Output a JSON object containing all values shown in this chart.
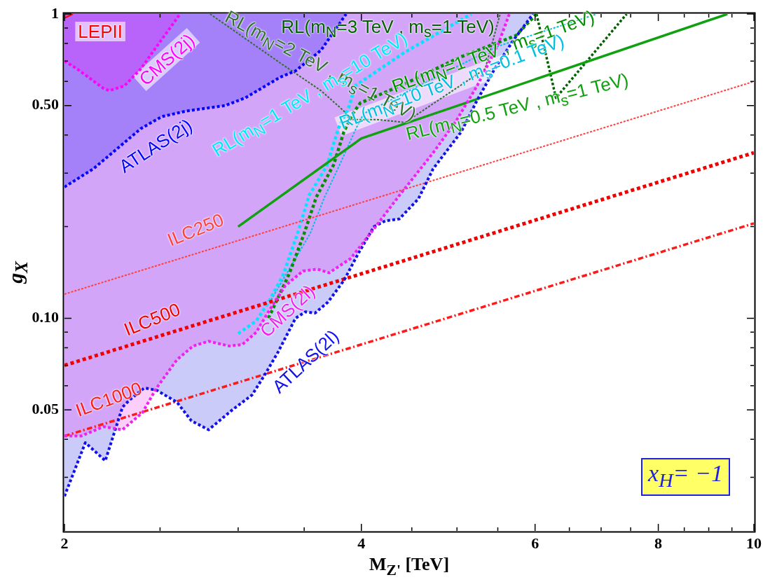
{
  "chart_data": {
    "type": "line",
    "xlabel": "M$_{Z'}$ [TeV]",
    "ylabel": "g$_{X}$",
    "log": "xy",
    "xlim": [
      2,
      10
    ],
    "ylim": [
      0.02,
      1
    ],
    "xticks": [
      2,
      {
        "value": 2.5,
        "label": null
      },
      {
        "value": 3,
        "label": null
      },
      {
        "value": 3.5,
        "label": null
      },
      4,
      {
        "value": 4.5,
        "label": null
      },
      {
        "value": 5,
        "label": null
      },
      {
        "value": 5.5,
        "label": null
      },
      6,
      {
        "value": 6.5,
        "label": null
      },
      {
        "value": 7,
        "label": null
      },
      {
        "value": 7.5,
        "label": null
      },
      8,
      {
        "value": 8.5,
        "label": null
      },
      {
        "value": 9,
        "label": null
      },
      {
        "value": 9.5,
        "label": null
      },
      10
    ],
    "yticks": [
      {
        "value": 0.03,
        "label": null
      },
      {
        "value": 0.04,
        "label": null
      },
      0.05,
      {
        "value": 0.06,
        "label": null
      },
      {
        "value": 0.07,
        "label": null
      },
      {
        "value": 0.08,
        "label": null
      },
      {
        "value": 0.09,
        "label": null
      },
      {
        "value": 0.1,
        "label": "0.10"
      },
      {
        "value": 0.2,
        "label": null
      },
      {
        "value": 0.3,
        "label": null
      },
      {
        "value": 0.4,
        "label": null
      },
      {
        "value": 0.5,
        "label": "0.50"
      },
      {
        "value": 0.6,
        "label": null
      },
      {
        "value": 0.7,
        "label": null
      },
      {
        "value": 0.8,
        "label": null
      },
      {
        "value": 0.9,
        "label": null
      },
      1
    ],
    "annotations": [
      "x$_{H}$= −1"
    ],
    "series": [
      {
        "name": "LEPII",
        "type": "line",
        "color": "#ff0000",
        "line_style": "solid",
        "x": [
          2,
          2.04
        ],
        "values": [
          0.97,
          1
        ],
        "lower": [
          0.97,
          1
        ],
        "upper": [
          1,
          1
        ]
      },
      {
        "name": "CMS(2j)",
        "type": "line",
        "color": "#ff00ff",
        "line_style": "dotted",
        "x": [
          2,
          2.06,
          2.19,
          2.22,
          2.3,
          2.39,
          2.5,
          2.62
        ],
        "values": [
          0.7,
          0.66,
          0.57,
          0.56,
          0.58,
          0.66,
          0.81,
          1
        ],
        "lower": [
          0.7,
          0.66,
          0.57,
          0.56,
          0.58,
          0.66,
          0.81,
          1
        ],
        "upper": [
          1,
          1,
          1,
          1,
          1,
          1,
          1,
          1
        ]
      },
      {
        "name": "ATLAS(2j)",
        "type": "line",
        "color": "#0000ff",
        "line_style": "dotted",
        "x": [
          2,
          2.14,
          2.26,
          2.39,
          2.51,
          2.66,
          2.91,
          3.05,
          3.31,
          3.43,
          3.64,
          3.86
        ],
        "values": [
          0.27,
          0.31,
          0.36,
          0.42,
          0.46,
          0.48,
          0.5,
          0.53,
          0.62,
          0.65,
          0.76,
          1
        ],
        "lower": [
          0.27,
          0.31,
          0.36,
          0.42,
          0.46,
          0.48,
          0.5,
          0.53,
          0.62,
          0.65,
          0.76,
          1
        ],
        "upper": [
          1,
          1,
          1,
          1,
          1,
          1,
          1,
          1,
          1,
          1,
          1,
          1
        ]
      },
      {
        "name": "CMS(2l)",
        "type": "line",
        "color": "#f020f0",
        "line_style": "dotted",
        "x": [
          2,
          2.08,
          2.19,
          2.29,
          2.4,
          2.48,
          2.6,
          2.7,
          2.8,
          2.94,
          3.03,
          3.13,
          3.22,
          3.35,
          3.49,
          3.61,
          3.71,
          3.9,
          4.08,
          4.37,
          4.73,
          4.99,
          5.24,
          5.51,
          5.65
        ],
        "values": [
          0.041,
          0.041,
          0.044,
          0.043,
          0.049,
          0.059,
          0.073,
          0.081,
          0.084,
          0.081,
          0.082,
          0.09,
          0.105,
          0.128,
          0.143,
          0.145,
          0.141,
          0.157,
          0.189,
          0.253,
          0.35,
          0.445,
          0.58,
          0.8,
          1
        ],
        "lower": [
          0.041,
          0.041,
          0.044,
          0.043,
          0.049,
          0.059,
          0.073,
          0.081,
          0.084,
          0.081,
          0.082,
          0.09,
          0.105,
          0.128,
          0.143,
          0.145,
          0.141,
          0.157,
          0.189,
          0.253,
          0.35,
          0.445,
          0.58,
          0.8,
          1
        ],
        "upper": [
          1,
          1,
          1,
          1,
          1,
          1,
          1,
          1,
          1,
          1,
          1,
          1,
          1,
          1,
          1,
          1,
          1,
          1,
          1,
          1,
          1,
          1,
          1,
          1,
          1
        ]
      },
      {
        "name": "ATLAS(2l)",
        "type": "line",
        "color": "#1010e8",
        "line_style": "dotted",
        "x": [
          2,
          2.1,
          2.2,
          2.29,
          2.33,
          2.41,
          2.48,
          2.6,
          2.69,
          2.8,
          2.96,
          3.1,
          3.2,
          3.29,
          3.43,
          3.51,
          3.59,
          3.7,
          3.84,
          3.97,
          4.12,
          4.23,
          4.37,
          4.57,
          4.73,
          5.05,
          5.24,
          5.46,
          5.69,
          5.97
        ],
        "values": [
          0.026,
          0.039,
          0.034,
          0.051,
          0.054,
          0.059,
          0.058,
          0.053,
          0.046,
          0.043,
          0.05,
          0.056,
          0.066,
          0.077,
          0.1,
          0.105,
          0.104,
          0.113,
          0.133,
          0.163,
          0.2,
          0.209,
          0.212,
          0.247,
          0.31,
          0.41,
          0.52,
          0.66,
          0.81,
          1
        ],
        "lower": [
          0.026,
          0.039,
          0.034,
          0.051,
          0.054,
          0.059,
          0.058,
          0.053,
          0.046,
          0.043,
          0.05,
          0.056,
          0.066,
          0.077,
          0.1,
          0.105,
          0.104,
          0.113,
          0.133,
          0.163,
          0.2,
          0.209,
          0.212,
          0.247,
          0.31,
          0.41,
          0.52,
          0.66,
          0.81,
          1
        ],
        "upper": [
          1,
          1,
          1,
          1,
          1,
          1,
          1,
          1,
          1,
          1,
          1,
          1,
          1,
          1,
          1,
          1,
          1,
          1,
          1,
          1,
          1,
          1,
          1,
          1,
          1,
          1,
          1,
          1,
          1,
          1
        ]
      },
      {
        "name": "ILC250",
        "type": "line",
        "color": "#ff4040",
        "line_style": "dotted",
        "x": [
          2,
          10
        ],
        "values": [
          0.12,
          0.6
        ]
      },
      {
        "name": "ILC500",
        "type": "line",
        "color": "#f00000",
        "line_style": "dotted",
        "x": [
          2,
          10
        ],
        "values": [
          0.07,
          0.35
        ]
      },
      {
        "name": "ILC1000",
        "type": "line",
        "color": "#ff1a1a",
        "line_style": "dashed",
        "x": [
          2,
          10
        ],
        "values": [
          0.041,
          0.205
        ]
      },
      {
        "name": "RL(m$_{N}$=0.5 TeV , m$_{s}$=1 TeV)",
        "type": "line",
        "color": "#10a010",
        "line_style": "solid",
        "x": [
          3,
          4,
          9.4
        ],
        "values": [
          0.2,
          0.39,
          1
        ]
      },
      {
        "name": "RL(m$_{N}$=1 TeV , m$_{s}$=1 TeV)",
        "type": "line",
        "color": "#009000",
        "line_style": "dotted",
        "x": [
          3.22,
          3.38,
          3.5,
          3.6,
          3.75,
          3.84,
          3.92,
          3.99,
          4.43,
          5.03,
          5.74,
          6.02
        ],
        "values": [
          0.1,
          0.14,
          0.19,
          0.25,
          0.32,
          0.41,
          0.47,
          0.51,
          0.59,
          0.72,
          0.85,
          1
        ]
      },
      {
        "name": "RL(m$_{N}$=2 TeV , m$_{s}$=1 TeV)",
        "type": "line",
        "color": "#2f6f2f",
        "line_style": "dotted",
        "x": [
          2.81,
          3.31,
          3.64,
          3.84,
          3.89,
          4.15,
          4.43,
          5.34,
          5.53
        ],
        "values": [
          1,
          0.69,
          0.56,
          0.48,
          0.45,
          0.45,
          0.44,
          0.66,
          1
        ]
      },
      {
        "name": "RL(m$_{N}$=3 TeV , m$_{s}$=1 TeV)",
        "type": "line",
        "color": "#006000",
        "line_style": "dotted",
        "x": [
          6.02,
          6.3,
          7.43
        ],
        "values": [
          1,
          0.53,
          1
        ]
      },
      {
        "name": "RL(m$_{N}$=1 TeV , m$_{s}$=10 TeV)",
        "type": "line",
        "color": "#00e5ff",
        "line_style": "dotted",
        "x": [
          3,
          3.13,
          3.22,
          3.33,
          3.45,
          3.54,
          3.69,
          3.79,
          3.89,
          3.94,
          4.43,
          5.17
        ],
        "values": [
          0.089,
          0.098,
          0.113,
          0.138,
          0.192,
          0.253,
          0.317,
          0.42,
          0.5,
          0.58,
          0.75,
          1
        ]
      },
      {
        "name": "RL(m$_{N}$=10 TeV , m$_{s}$=0.1 TeV)",
        "type": "line",
        "color": "#00c0e0",
        "line_style": "dotted",
        "x": [
          3.24,
          3.55,
          3.67,
          3.82,
          3.95,
          4.02,
          5.48,
          6.93
        ],
        "values": [
          0.115,
          0.19,
          0.25,
          0.33,
          0.42,
          0.47,
          0.78,
          1
        ]
      }
    ]
  }
}
